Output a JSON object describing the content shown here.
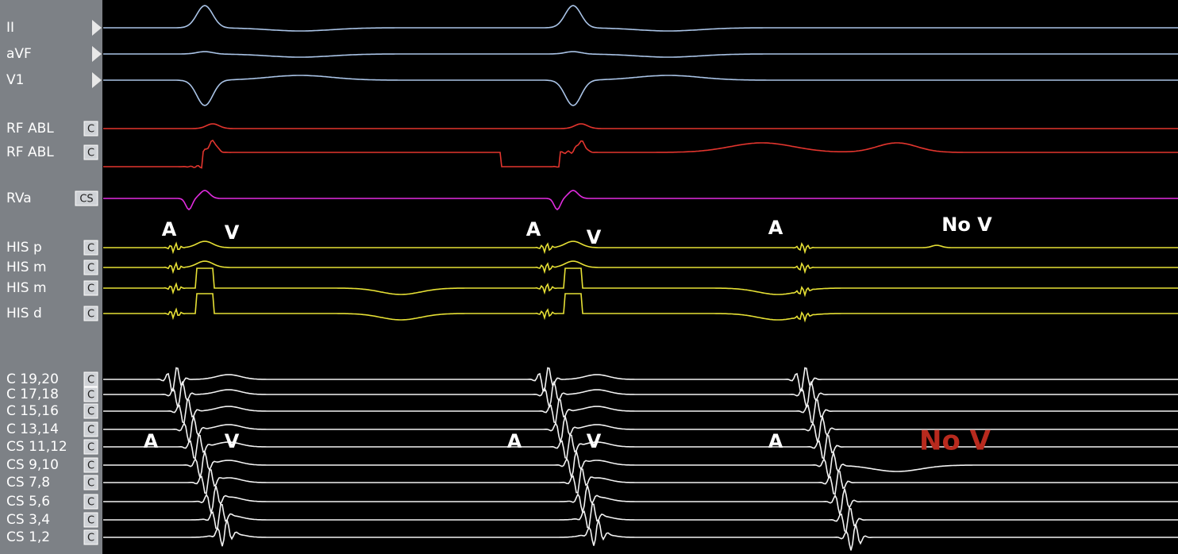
{
  "channels": [
    {
      "label": "II"
    },
    {
      "label": "aVF"
    },
    {
      "label": "V1"
    },
    {
      "label": "RF ABL",
      "badge": "C"
    },
    {
      "label": "RF ABL",
      "badge": "C"
    },
    {
      "label": "RVa",
      "badge": "CS"
    },
    {
      "label": "HIS p",
      "badge": "C"
    },
    {
      "label": "HIS m",
      "badge": "C"
    },
    {
      "label": "HIS m",
      "badge": "C"
    },
    {
      "label": "HIS d",
      "badge": "C"
    },
    {
      "label": "C 19,20",
      "badge": "C"
    },
    {
      "label": "C 17,18",
      "badge": "C"
    },
    {
      "label": "C 15,16",
      "badge": "C"
    },
    {
      "label": "C 13,14",
      "badge": "C"
    },
    {
      "label": "CS 11,12",
      "badge": "C"
    },
    {
      "label": "CS 9,10",
      "badge": "C"
    },
    {
      "label": "CS 7,8",
      "badge": "C"
    },
    {
      "label": "CS 5,6",
      "badge": "C"
    },
    {
      "label": "CS 3,4",
      "badge": "C"
    },
    {
      "label": "CS 1,2",
      "badge": "C"
    }
  ],
  "his_annotations": [
    "A",
    "V",
    "A",
    "V",
    "A",
    "No V"
  ],
  "cs_annotations": [
    "A",
    "V",
    "A",
    "V",
    "A",
    "No V"
  ]
}
